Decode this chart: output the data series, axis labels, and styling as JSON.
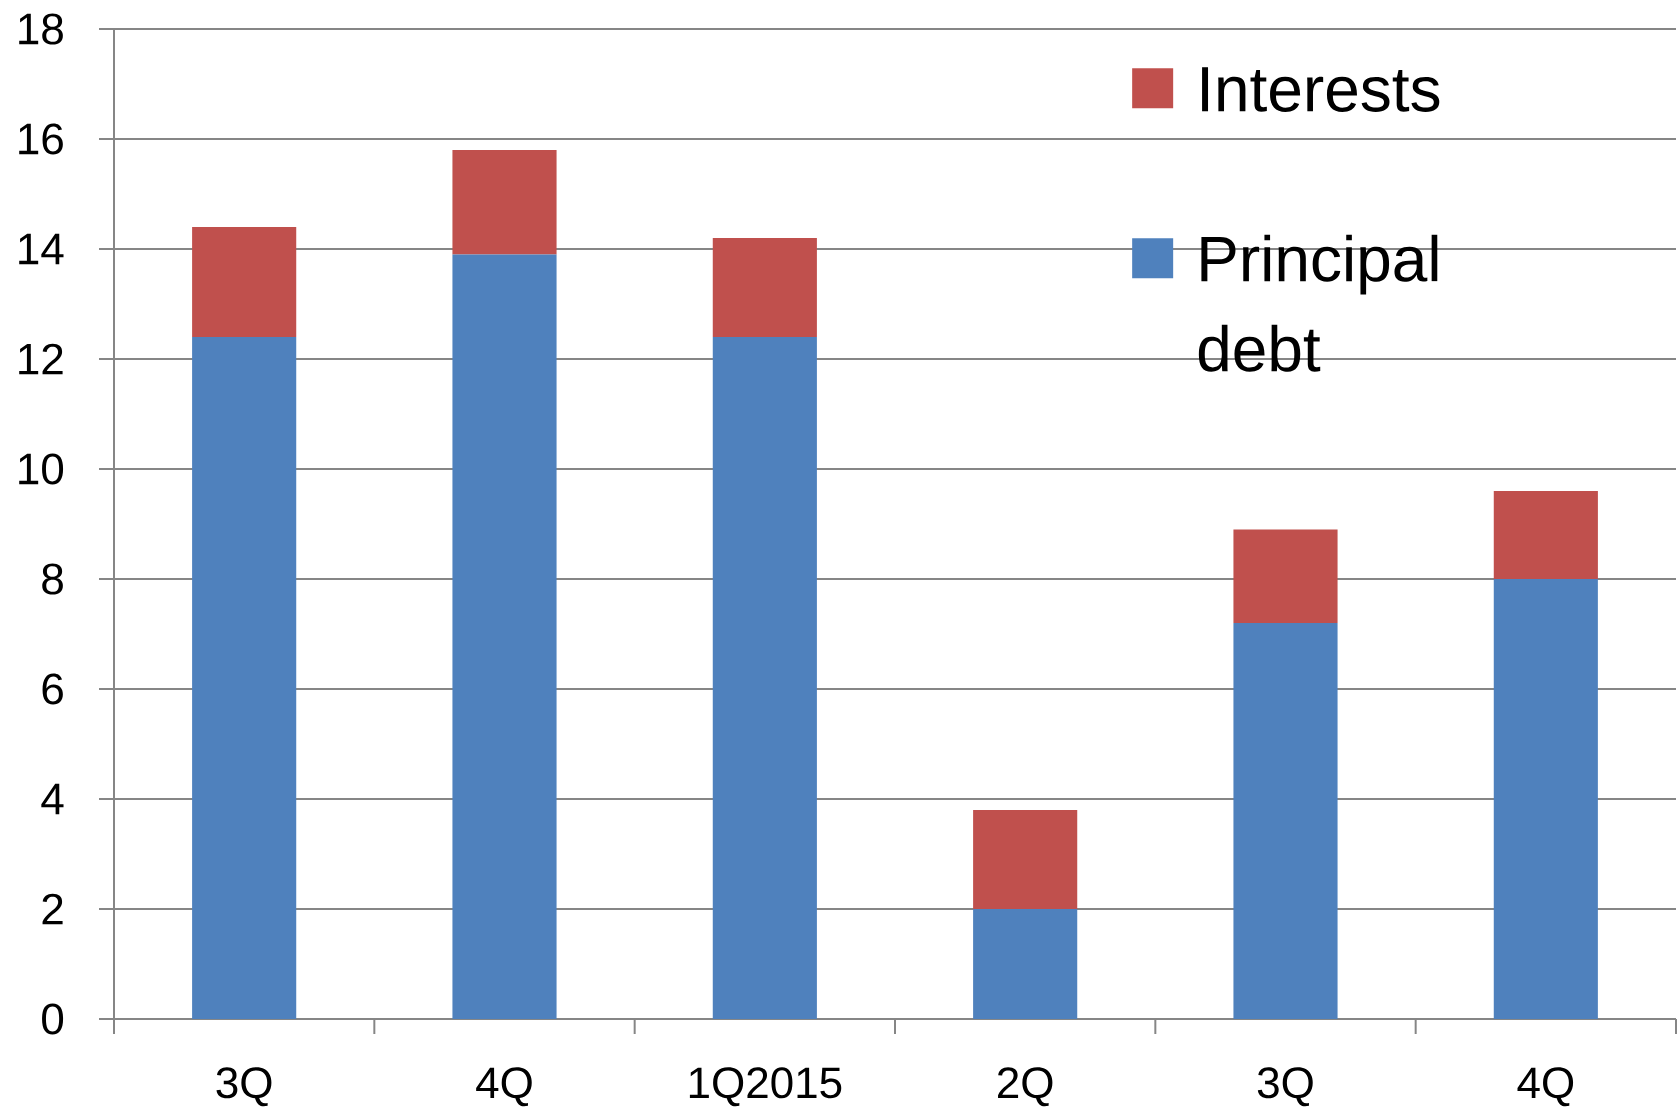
{
  "chart_data": {
    "type": "bar",
    "stacked": true,
    "categories": [
      "3Q",
      "4Q",
      "1Q2015",
      "2Q",
      "3Q",
      "4Q"
    ],
    "series": [
      {
        "name": "Principal debt",
        "color": "#4f81bd",
        "values": [
          12.4,
          13.9,
          12.4,
          2.0,
          7.2,
          8.0
        ]
      },
      {
        "name": "Interests",
        "color": "#c0504d",
        "values": [
          2.0,
          1.9,
          1.8,
          1.8,
          1.7,
          1.6
        ]
      }
    ],
    "ylim": [
      0,
      18
    ],
    "yticks": [
      0,
      2,
      4,
      6,
      8,
      10,
      12,
      14,
      16,
      18
    ],
    "grid": "y",
    "legend": "top right"
  }
}
